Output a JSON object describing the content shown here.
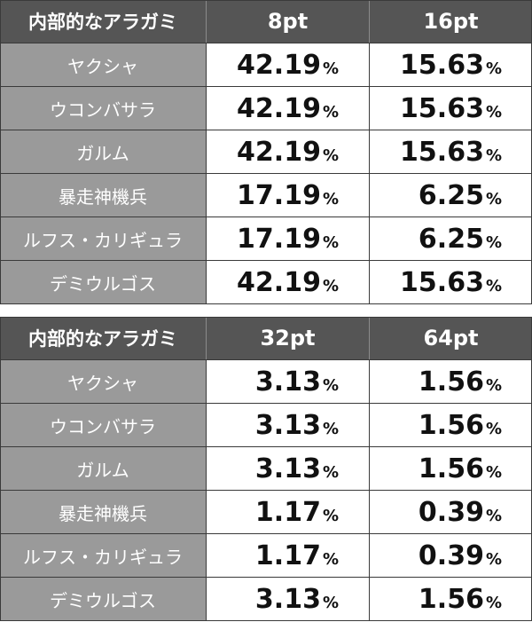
{
  "tables": [
    {
      "header": [
        "内部的なアラガミ",
        "8pt",
        "16pt"
      ],
      "rows": [
        {
          "name": "ヤクシャ",
          "v1": "42.19",
          "v2": "15.63"
        },
        {
          "name": "ウコンバサラ",
          "v1": "42.19",
          "v2": "15.63"
        },
        {
          "name": "ガルム",
          "v1": "42.19",
          "v2": "15.63"
        },
        {
          "name": "暴走神機兵",
          "v1": "17.19",
          "v2": "6.25"
        },
        {
          "name": "ルフス・カリギュラ",
          "v1": "17.19",
          "v2": "6.25"
        },
        {
          "name": "デミウルゴス",
          "v1": "42.19",
          "v2": "15.63"
        }
      ]
    },
    {
      "header": [
        "内部的なアラガミ",
        "32pt",
        "64pt"
      ],
      "rows": [
        {
          "name": "ヤクシャ",
          "v1": "3.13",
          "v2": "1.56"
        },
        {
          "name": "ウコンバサラ",
          "v1": "3.13",
          "v2": "1.56"
        },
        {
          "name": "ガルム",
          "v1": "3.13",
          "v2": "1.56"
        },
        {
          "name": "暴走神機兵",
          "v1": "1.17",
          "v2": "0.39"
        },
        {
          "name": "ルフス・カリギュラ",
          "v1": "1.17",
          "v2": "0.39"
        },
        {
          "name": "デミウルゴス",
          "v1": "3.13",
          "v2": "1.56"
        }
      ]
    }
  ],
  "unit": "%",
  "colors": {
    "header_bg": "#555555",
    "label_bg": "#9a9a9a",
    "value_bg": "#ffffff"
  }
}
